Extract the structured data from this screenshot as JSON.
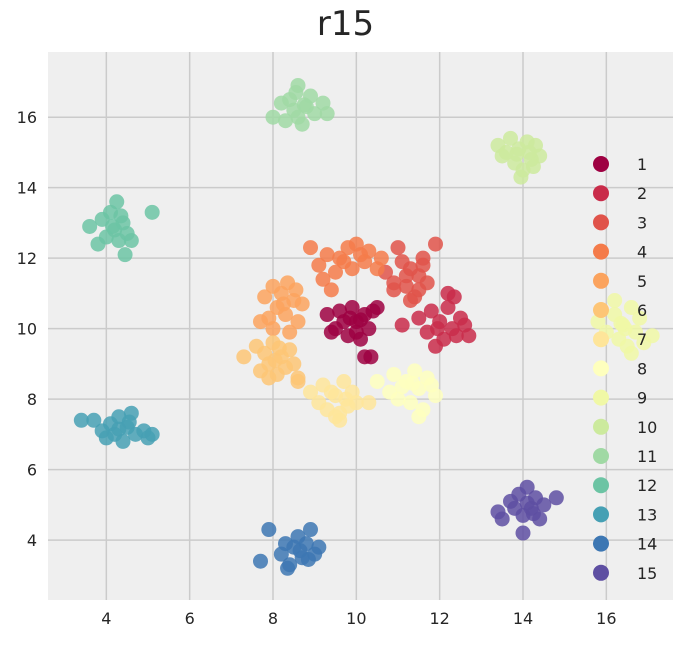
{
  "chart_data": {
    "type": "scatter",
    "title": "r15",
    "xlabel": "",
    "ylabel": "",
    "xlim": [
      2.6,
      17.6
    ],
    "ylim": [
      2.3,
      17.85
    ],
    "xticks": [
      4,
      6,
      8,
      10,
      12,
      14,
      16
    ],
    "yticks": [
      4,
      6,
      8,
      10,
      12,
      14,
      16
    ],
    "grid": true,
    "legend_position": "right",
    "series": [
      {
        "name": "1",
        "color": "#9e0142",
        "center": [
          9.92,
          10.18
        ],
        "points": [
          [
            9.3,
            10.4
          ],
          [
            9.5,
            10.0
          ],
          [
            9.6,
            10.5
          ],
          [
            9.8,
            9.8
          ],
          [
            9.9,
            10.6
          ],
          [
            10.0,
            10.2
          ],
          [
            10.1,
            9.7
          ],
          [
            10.2,
            10.4
          ],
          [
            10.3,
            10.0
          ],
          [
            10.4,
            10.5
          ],
          [
            9.7,
            10.2
          ],
          [
            9.4,
            9.9
          ],
          [
            10.5,
            10.6
          ],
          [
            10.2,
            9.2
          ],
          [
            10.35,
            9.2
          ],
          [
            10.0,
            9.9
          ],
          [
            9.85,
            10.3
          ],
          [
            10.1,
            10.25
          ]
        ]
      },
      {
        "name": "2",
        "color": "#c92c4a",
        "center": [
          11.95,
          10.0
        ],
        "points": [
          [
            11.1,
            10.1
          ],
          [
            11.5,
            10.3
          ],
          [
            11.7,
            9.9
          ],
          [
            11.8,
            10.5
          ],
          [
            12.0,
            10.2
          ],
          [
            12.1,
            9.7
          ],
          [
            12.2,
            10.6
          ],
          [
            12.3,
            10.0
          ],
          [
            12.4,
            9.8
          ],
          [
            12.6,
            10.1
          ],
          [
            12.7,
            9.8
          ],
          [
            12.2,
            11.0
          ],
          [
            12.35,
            10.9
          ],
          [
            11.9,
            9.5
          ],
          [
            12.5,
            10.3
          ],
          [
            11.95,
            10.0
          ]
        ]
      },
      {
        "name": "3",
        "color": "#e0534a",
        "center": [
          11.3,
          11.45
        ],
        "points": [
          [
            10.7,
            11.6
          ],
          [
            10.9,
            11.3
          ],
          [
            11.0,
            12.3
          ],
          [
            11.1,
            11.9
          ],
          [
            11.2,
            11.2
          ],
          [
            11.3,
            11.7
          ],
          [
            11.4,
            10.9
          ],
          [
            11.5,
            11.5
          ],
          [
            11.6,
            12.0
          ],
          [
            11.7,
            11.3
          ],
          [
            11.9,
            12.4
          ],
          [
            11.3,
            10.8
          ],
          [
            11.2,
            11.5
          ],
          [
            11.6,
            11.8
          ],
          [
            10.9,
            11.1
          ],
          [
            11.5,
            11.1
          ]
        ]
      },
      {
        "name": "4",
        "color": "#f47b4a",
        "center": [
          9.8,
          11.9
        ],
        "points": [
          [
            8.9,
            12.3
          ],
          [
            9.1,
            11.8
          ],
          [
            9.3,
            12.1
          ],
          [
            9.5,
            11.6
          ],
          [
            9.6,
            12.0
          ],
          [
            9.8,
            12.3
          ],
          [
            9.9,
            11.7
          ],
          [
            10.0,
            12.4
          ],
          [
            10.2,
            11.9
          ],
          [
            10.3,
            12.2
          ],
          [
            10.5,
            11.7
          ],
          [
            10.6,
            12.0
          ],
          [
            9.4,
            11.1
          ],
          [
            9.2,
            11.4
          ],
          [
            9.7,
            11.9
          ],
          [
            10.1,
            12.1
          ]
        ]
      },
      {
        "name": "5",
        "color": "#fba35e",
        "center": [
          8.25,
          10.7
        ],
        "points": [
          [
            7.8,
            10.9
          ],
          [
            7.9,
            10.3
          ],
          [
            8.0,
            11.2
          ],
          [
            8.1,
            10.6
          ],
          [
            8.2,
            11.0
          ],
          [
            8.3,
            10.4
          ],
          [
            8.35,
            11.3
          ],
          [
            8.5,
            10.8
          ],
          [
            8.6,
            10.2
          ],
          [
            8.7,
            10.7
          ],
          [
            8.0,
            10.0
          ],
          [
            8.4,
            9.9
          ],
          [
            7.7,
            10.2
          ],
          [
            8.25,
            10.7
          ],
          [
            8.55,
            11.1
          ]
        ]
      },
      {
        "name": "6",
        "color": "#fdc576",
        "center": [
          8.05,
          9.1
        ],
        "points": [
          [
            7.3,
            9.2
          ],
          [
            7.6,
            9.5
          ],
          [
            7.7,
            8.8
          ],
          [
            7.8,
            9.3
          ],
          [
            7.9,
            9.0
          ],
          [
            8.0,
            9.6
          ],
          [
            8.1,
            8.7
          ],
          [
            8.2,
            9.2
          ],
          [
            8.3,
            8.9
          ],
          [
            8.4,
            9.4
          ],
          [
            8.5,
            9.0
          ],
          [
            8.6,
            8.6
          ],
          [
            8.6,
            8.5
          ],
          [
            7.9,
            8.6
          ],
          [
            8.15,
            9.45
          ],
          [
            8.05,
            9.1
          ]
        ]
      },
      {
        "name": "7",
        "color": "#fee59a",
        "center": [
          9.6,
          8.0
        ],
        "points": [
          [
            8.9,
            8.2
          ],
          [
            9.1,
            7.9
          ],
          [
            9.2,
            8.4
          ],
          [
            9.3,
            7.7
          ],
          [
            9.5,
            8.1
          ],
          [
            9.6,
            7.6
          ],
          [
            9.7,
            8.5
          ],
          [
            9.8,
            7.8
          ],
          [
            9.9,
            8.2
          ],
          [
            10.0,
            7.9
          ],
          [
            10.3,
            7.9
          ],
          [
            9.6,
            7.4
          ],
          [
            9.4,
            8.2
          ],
          [
            9.75,
            8.0
          ],
          [
            9.5,
            7.5
          ]
        ]
      },
      {
        "name": "8",
        "color": "#feffbe",
        "center": [
          11.3,
          8.4
        ],
        "points": [
          [
            10.5,
            8.5
          ],
          [
            10.8,
            8.2
          ],
          [
            10.9,
            8.7
          ],
          [
            11.0,
            8.0
          ],
          [
            11.2,
            8.5
          ],
          [
            11.3,
            7.9
          ],
          [
            11.4,
            8.8
          ],
          [
            11.5,
            8.3
          ],
          [
            11.6,
            7.7
          ],
          [
            11.7,
            8.6
          ],
          [
            11.9,
            8.1
          ],
          [
            11.5,
            7.5
          ],
          [
            11.1,
            8.35
          ],
          [
            11.35,
            8.45
          ],
          [
            11.8,
            8.4
          ]
        ]
      },
      {
        "name": "9",
        "color": "#f0f8a6",
        "center": [
          16.5,
          10.0
        ],
        "points": [
          [
            15.8,
            10.2
          ],
          [
            16.0,
            9.9
          ],
          [
            16.2,
            10.4
          ],
          [
            16.3,
            9.7
          ],
          [
            16.4,
            10.1
          ],
          [
            16.5,
            9.5
          ],
          [
            16.6,
            10.6
          ],
          [
            16.7,
            9.9
          ],
          [
            16.8,
            10.3
          ],
          [
            16.9,
            9.6
          ],
          [
            17.1,
            9.8
          ],
          [
            16.2,
            10.8
          ],
          [
            16.45,
            10.0
          ],
          [
            16.6,
            9.3
          ],
          [
            16.35,
            10.15
          ]
        ]
      },
      {
        "name": "10",
        "color": "#ccea9d",
        "center": [
          13.9,
          14.95
        ],
        "points": [
          [
            13.4,
            15.2
          ],
          [
            13.5,
            14.9
          ],
          [
            13.7,
            15.4
          ],
          [
            13.8,
            14.7
          ],
          [
            13.9,
            15.1
          ],
          [
            14.0,
            14.5
          ],
          [
            14.1,
            15.3
          ],
          [
            14.2,
            14.8
          ],
          [
            14.3,
            15.2
          ],
          [
            14.4,
            14.9
          ],
          [
            13.95,
            14.3
          ],
          [
            13.6,
            15.0
          ],
          [
            14.15,
            15.0
          ],
          [
            13.85,
            14.95
          ],
          [
            14.25,
            14.6
          ]
        ]
      },
      {
        "name": "11",
        "color": "#a0d9a4",
        "center": [
          8.7,
          16.3
        ],
        "points": [
          [
            8.0,
            16.0
          ],
          [
            8.2,
            16.4
          ],
          [
            8.3,
            15.9
          ],
          [
            8.4,
            16.5
          ],
          [
            8.5,
            16.2
          ],
          [
            8.6,
            16.9
          ],
          [
            8.7,
            15.8
          ],
          [
            8.8,
            16.3
          ],
          [
            8.9,
            16.6
          ],
          [
            9.0,
            16.1
          ],
          [
            9.2,
            16.4
          ],
          [
            9.3,
            16.1
          ],
          [
            8.55,
            16.7
          ],
          [
            8.75,
            16.35
          ],
          [
            8.6,
            16.0
          ]
        ]
      },
      {
        "name": "12",
        "color": "#6cc4a4",
        "center": [
          4.3,
          12.8
        ],
        "points": [
          [
            3.6,
            12.9
          ],
          [
            3.8,
            12.4
          ],
          [
            3.9,
            13.1
          ],
          [
            4.0,
            12.6
          ],
          [
            4.1,
            13.3
          ],
          [
            4.2,
            12.8
          ],
          [
            4.25,
            13.6
          ],
          [
            4.3,
            12.5
          ],
          [
            4.4,
            13.0
          ],
          [
            4.5,
            12.7
          ],
          [
            4.6,
            12.5
          ],
          [
            4.45,
            12.1
          ],
          [
            5.1,
            13.3
          ],
          [
            4.15,
            12.9
          ],
          [
            4.35,
            13.2
          ]
        ]
      },
      {
        "name": "13",
        "color": "#46a0b4",
        "center": [
          4.4,
          7.1
        ],
        "points": [
          [
            3.4,
            7.4
          ],
          [
            3.7,
            7.4
          ],
          [
            3.9,
            7.1
          ],
          [
            4.0,
            6.9
          ],
          [
            4.1,
            7.3
          ],
          [
            4.2,
            7.0
          ],
          [
            4.3,
            7.5
          ],
          [
            4.4,
            6.8
          ],
          [
            4.5,
            7.2
          ],
          [
            4.6,
            7.6
          ],
          [
            4.7,
            7.0
          ],
          [
            4.9,
            7.1
          ],
          [
            5.0,
            6.9
          ],
          [
            5.1,
            7.0
          ],
          [
            4.3,
            7.15
          ],
          [
            4.55,
            7.35
          ]
        ]
      },
      {
        "name": "14",
        "color": "#3d77b3",
        "center": [
          8.7,
          3.7
        ],
        "points": [
          [
            7.7,
            3.4
          ],
          [
            7.9,
            4.3
          ],
          [
            8.2,
            3.6
          ],
          [
            8.3,
            3.9
          ],
          [
            8.4,
            3.3
          ],
          [
            8.5,
            3.8
          ],
          [
            8.6,
            4.1
          ],
          [
            8.7,
            3.5
          ],
          [
            8.8,
            3.9
          ],
          [
            8.9,
            4.3
          ],
          [
            9.0,
            3.6
          ],
          [
            9.1,
            3.8
          ],
          [
            8.35,
            3.2
          ],
          [
            8.65,
            3.7
          ],
          [
            8.85,
            3.45
          ]
        ]
      },
      {
        "name": "15",
        "color": "#5e4fa2",
        "center": [
          14.1,
          5.0
        ],
        "points": [
          [
            13.4,
            4.8
          ],
          [
            13.5,
            4.6
          ],
          [
            13.7,
            5.1
          ],
          [
            13.8,
            4.9
          ],
          [
            13.9,
            5.3
          ],
          [
            14.0,
            4.7
          ],
          [
            14.1,
            5.5
          ],
          [
            14.2,
            4.9
          ],
          [
            14.3,
            5.2
          ],
          [
            14.4,
            4.6
          ],
          [
            14.5,
            5.0
          ],
          [
            14.8,
            5.2
          ],
          [
            14.0,
            4.2
          ],
          [
            14.1,
            5.05
          ],
          [
            14.25,
            4.75
          ]
        ]
      }
    ]
  }
}
